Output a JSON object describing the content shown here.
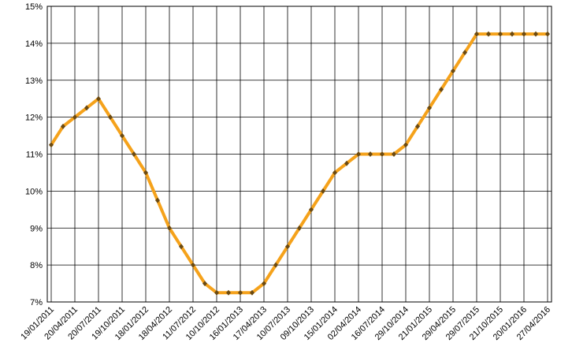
{
  "chart_data": {
    "type": "line",
    "categories": [
      "19/01/2011",
      null,
      "20/04/2011",
      null,
      "20/07/2011",
      null,
      "19/10/2011",
      null,
      "18/01/2012",
      null,
      "18/04/2012",
      null,
      "11/07/2012",
      null,
      "10/10/2012",
      null,
      "16/01/2013",
      null,
      "17/04/2013",
      null,
      "10/07/2013",
      null,
      "09/10/2013",
      null,
      "15/01/2014",
      null,
      "02/04/2014",
      null,
      "16/07/2014",
      null,
      "29/10/2014",
      null,
      "21/01/2015",
      null,
      "29/04/2015",
      null,
      "29/07/2015",
      null,
      "21/10/2015",
      null,
      "20/01/2016",
      null,
      "27/04/2016"
    ],
    "series": [
      {
        "color": "#f5a21b",
        "values": [
          11.25,
          11.75,
          12.0,
          12.25,
          12.5,
          12.0,
          11.5,
          11.0,
          10.5,
          9.75,
          9.0,
          8.5,
          8.0,
          7.5,
          7.25,
          7.25,
          7.25,
          7.25,
          7.5,
          8.0,
          8.5,
          9.0,
          9.5,
          10.0,
          10.5,
          10.75,
          11.0,
          11.0,
          11.0,
          11.0,
          11.25,
          11.75,
          12.25,
          12.75,
          13.25,
          13.75,
          14.25,
          14.25,
          14.25,
          14.25,
          14.25,
          14.25,
          14.25
        ]
      }
    ],
    "ylim": [
      7,
      15
    ],
    "yticks": [
      {
        "value": 7,
        "label": "7%"
      },
      {
        "value": 8,
        "label": "8%"
      },
      {
        "value": 9,
        "label": "9%"
      },
      {
        "value": 10,
        "label": "10%"
      },
      {
        "value": 11,
        "label": "11%"
      },
      {
        "value": 12,
        "label": "12%"
      },
      {
        "value": 13,
        "label": "13%"
      },
      {
        "value": 14,
        "label": "14%"
      },
      {
        "value": 15,
        "label": "15%"
      }
    ],
    "grid": true,
    "marker_color": "#6b4a12"
  }
}
